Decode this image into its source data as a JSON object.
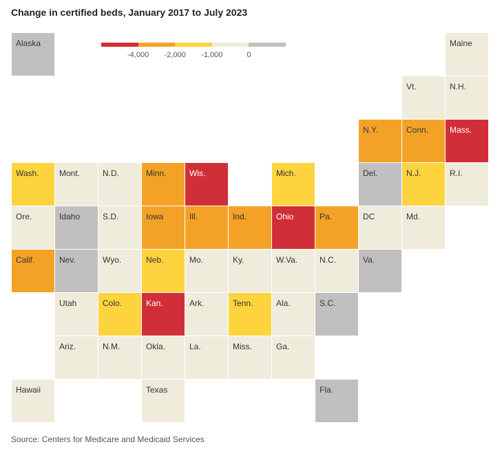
{
  "title": "Change in certified beds, January 2017 to July 2023",
  "source": "Source: Centers for Medicare and Medicaid Services",
  "colors": {
    "red": "#d12f38",
    "orange": "#f4a227",
    "yellow": "#fdd43e",
    "cream": "#f0ecdc",
    "gray": "#c0c0c0"
  },
  "legend": {
    "bins": [
      {
        "color": "#d12f38"
      },
      {
        "color": "#f4a227"
      },
      {
        "color": "#fdd43e"
      },
      {
        "color": "#f0ecdc"
      },
      {
        "color": "#c0c0c0"
      }
    ],
    "ticks": [
      "-4,000",
      "-2,000",
      "-1,000",
      "0"
    ]
  },
  "tiles": [
    {
      "label": "Alaska",
      "color": "#c0c0c0",
      "col": 0,
      "row": 0
    },
    {
      "label": "Maine",
      "color": "#f0ecdc",
      "col": 10,
      "row": 0
    },
    {
      "label": "Vt.",
      "color": "#f0ecdc",
      "col": 9,
      "row": 1
    },
    {
      "label": "N.H.",
      "color": "#f0ecdc",
      "col": 10,
      "row": 1
    },
    {
      "label": "N.Y.",
      "color": "#f4a227",
      "col": 8,
      "row": 2
    },
    {
      "label": "Conn.",
      "color": "#f4a227",
      "col": 9,
      "row": 2
    },
    {
      "label": "Mass.",
      "color": "#d12f38",
      "col": 10,
      "row": 2
    },
    {
      "label": "Wash.",
      "color": "#fdd43e",
      "col": 0,
      "row": 3
    },
    {
      "label": "Mont.",
      "color": "#f0ecdc",
      "col": 1,
      "row": 3
    },
    {
      "label": "N.D.",
      "color": "#f0ecdc",
      "col": 2,
      "row": 3
    },
    {
      "label": "Minn.",
      "color": "#f4a227",
      "col": 3,
      "row": 3
    },
    {
      "label": "Wis.",
      "color": "#d12f38",
      "col": 4,
      "row": 3
    },
    {
      "label": "Mich.",
      "color": "#fdd43e",
      "col": 6,
      "row": 3
    },
    {
      "label": "Del.",
      "color": "#c0c0c0",
      "col": 8,
      "row": 3
    },
    {
      "label": "N.J.",
      "color": "#fdd43e",
      "col": 9,
      "row": 3
    },
    {
      "label": "R.I.",
      "color": "#f0ecdc",
      "col": 10,
      "row": 3
    },
    {
      "label": "Ore.",
      "color": "#f0ecdc",
      "col": 0,
      "row": 4
    },
    {
      "label": "Idaho",
      "color": "#c0c0c0",
      "col": 1,
      "row": 4
    },
    {
      "label": "S.D.",
      "color": "#f0ecdc",
      "col": 2,
      "row": 4
    },
    {
      "label": "Iowa",
      "color": "#f4a227",
      "col": 3,
      "row": 4
    },
    {
      "label": "Ill.",
      "color": "#f4a227",
      "col": 4,
      "row": 4
    },
    {
      "label": "Ind.",
      "color": "#f4a227",
      "col": 5,
      "row": 4
    },
    {
      "label": "Ohio",
      "color": "#d12f38",
      "col": 6,
      "row": 4
    },
    {
      "label": "Pa.",
      "color": "#f4a227",
      "col": 7,
      "row": 4
    },
    {
      "label": "DC",
      "color": "#f0ecdc",
      "col": 8,
      "row": 4
    },
    {
      "label": "Md.",
      "color": "#f0ecdc",
      "col": 9,
      "row": 4
    },
    {
      "label": "Calif.",
      "color": "#f4a227",
      "col": 0,
      "row": 5
    },
    {
      "label": "Nev.",
      "color": "#c0c0c0",
      "col": 1,
      "row": 5
    },
    {
      "label": "Wyo.",
      "color": "#f0ecdc",
      "col": 2,
      "row": 5
    },
    {
      "label": "Neb.",
      "color": "#fdd43e",
      "col": 3,
      "row": 5
    },
    {
      "label": "Mo.",
      "color": "#f0ecdc",
      "col": 4,
      "row": 5
    },
    {
      "label": "Ky.",
      "color": "#f0ecdc",
      "col": 5,
      "row": 5
    },
    {
      "label": "W.Va.",
      "color": "#f0ecdc",
      "col": 6,
      "row": 5
    },
    {
      "label": "N.C.",
      "color": "#f0ecdc",
      "col": 7,
      "row": 5
    },
    {
      "label": "Va.",
      "color": "#c0c0c0",
      "col": 8,
      "row": 5
    },
    {
      "label": "Utah",
      "color": "#f0ecdc",
      "col": 1,
      "row": 6
    },
    {
      "label": "Colo.",
      "color": "#fdd43e",
      "col": 2,
      "row": 6
    },
    {
      "label": "Kan.",
      "color": "#d12f38",
      "col": 3,
      "row": 6
    },
    {
      "label": "Ark.",
      "color": "#f0ecdc",
      "col": 4,
      "row": 6
    },
    {
      "label": "Tenn.",
      "color": "#fdd43e",
      "col": 5,
      "row": 6
    },
    {
      "label": "Ala.",
      "color": "#f0ecdc",
      "col": 6,
      "row": 6
    },
    {
      "label": "S.C.",
      "color": "#c0c0c0",
      "col": 7,
      "row": 6
    },
    {
      "label": "Ariz.",
      "color": "#f0ecdc",
      "col": 1,
      "row": 7
    },
    {
      "label": "N.M.",
      "color": "#f0ecdc",
      "col": 2,
      "row": 7
    },
    {
      "label": "Okla.",
      "color": "#f0ecdc",
      "col": 3,
      "row": 7
    },
    {
      "label": "La.",
      "color": "#f0ecdc",
      "col": 4,
      "row": 7
    },
    {
      "label": "Miss.",
      "color": "#f0ecdc",
      "col": 5,
      "row": 7
    },
    {
      "label": "Ga.",
      "color": "#f0ecdc",
      "col": 6,
      "row": 7
    },
    {
      "label": "Hawaii",
      "color": "#f0ecdc",
      "col": 0,
      "row": 8
    },
    {
      "label": "Texas",
      "color": "#f0ecdc",
      "col": 3,
      "row": 8
    },
    {
      "label": "Fla.",
      "color": "#c0c0c0",
      "col": 7,
      "row": 8
    }
  ]
}
